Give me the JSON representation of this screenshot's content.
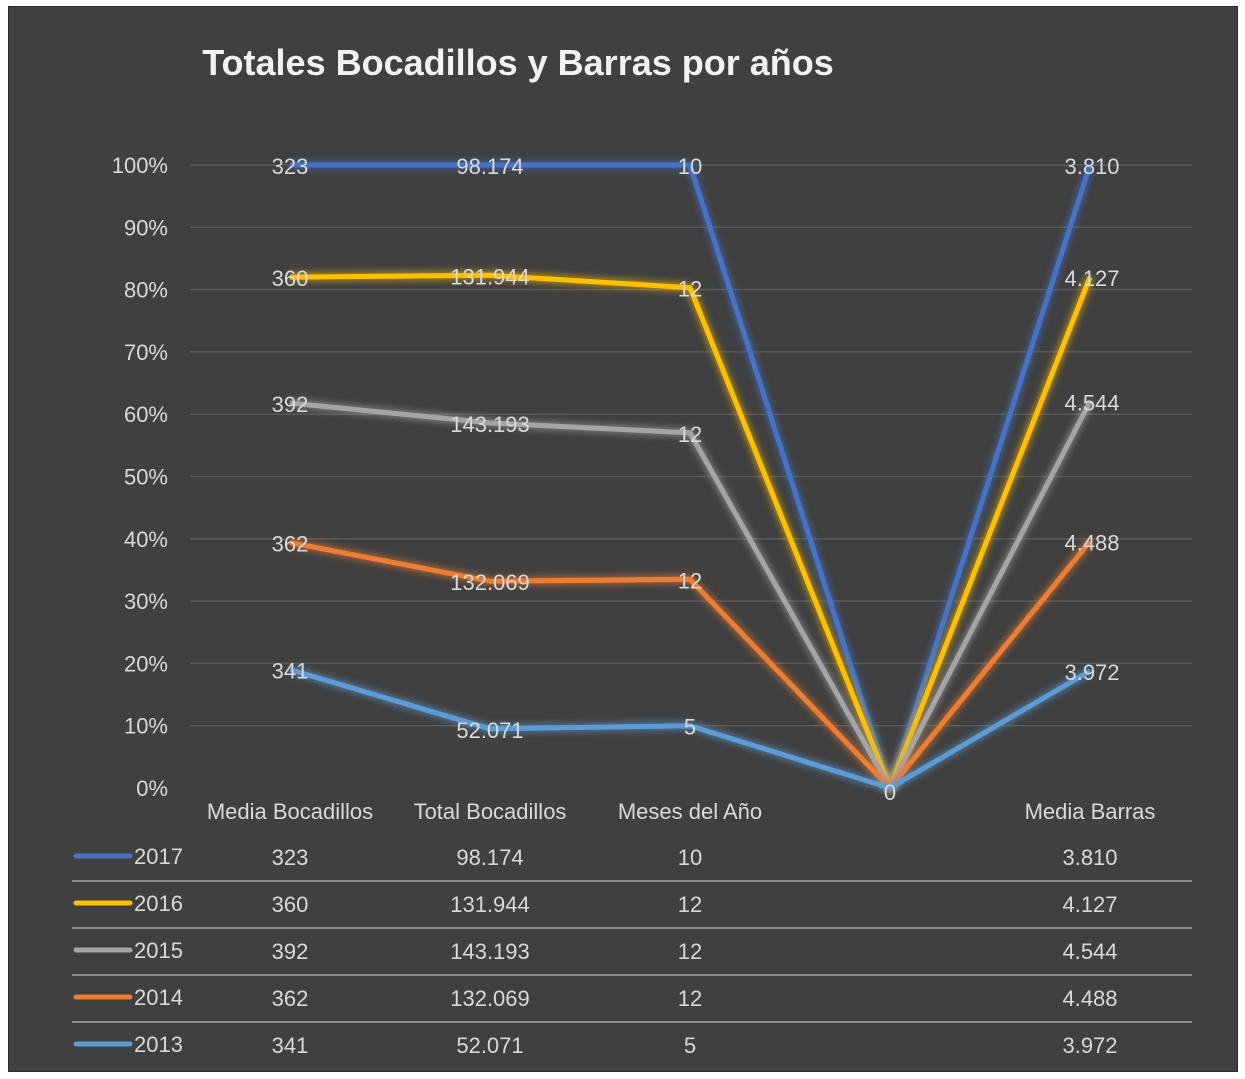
{
  "chart_data": {
    "type": "line",
    "title": "Totales Bocadillos y Barras por años",
    "categories": [
      "Media Bocadillos",
      "Total Bocadillos",
      "Meses del Año",
      "",
      "Media Barras"
    ],
    "y_axis": {
      "ticks": [
        "0%",
        "10%",
        "20%",
        "30%",
        "40%",
        "50%",
        "60%",
        "70%",
        "80%",
        "90%",
        "100%"
      ],
      "ylim": [
        0,
        100
      ],
      "grid": true
    },
    "series": [
      {
        "name": "2017",
        "color": "#4472C4",
        "percent": [
          100,
          100,
          100,
          0,
          100
        ],
        "labels": [
          "323",
          "98.174",
          "10",
          "",
          "3.810"
        ]
      },
      {
        "name": "2016",
        "color": "#FFC000",
        "percent": [
          82,
          82.3,
          80.3,
          0,
          82
        ],
        "labels": [
          "360",
          "131.944",
          "12",
          "",
          "4.127"
        ]
      },
      {
        "name": "2015",
        "color": "#A5A5A5",
        "percent": [
          61.8,
          58.6,
          57,
          0,
          62
        ],
        "labels": [
          "392",
          "143.193",
          "12",
          "",
          "4.544"
        ]
      },
      {
        "name": "2014",
        "color": "#ED7D31",
        "percent": [
          39.4,
          33.2,
          33.5,
          0,
          39.6
        ],
        "labels": [
          "362",
          "132.069",
          "12",
          "",
          "4.488"
        ]
      },
      {
        "name": "2013",
        "color": "#5B9BD5",
        "percent": [
          19,
          9.5,
          10,
          0,
          18.8
        ],
        "labels": [
          "341",
          "52.071",
          "5",
          "",
          "3.972"
        ]
      }
    ],
    "zero_point_label": "0",
    "legend": "data-table-below",
    "data_table": {
      "headers": [
        "Media Bocadillos",
        "Total Bocadillos",
        "Meses del Año",
        "",
        "Media Barras"
      ],
      "rows": [
        {
          "series": "2017",
          "color": "#4472C4",
          "cells": [
            "323",
            "98.174",
            "10",
            "",
            "3.810"
          ]
        },
        {
          "series": "2016",
          "color": "#FFC000",
          "cells": [
            "360",
            "131.944",
            "12",
            "",
            "4.127"
          ]
        },
        {
          "series": "2015",
          "color": "#A5A5A5",
          "cells": [
            "392",
            "143.193",
            "12",
            "",
            "4.544"
          ]
        },
        {
          "series": "2014",
          "color": "#ED7D31",
          "cells": [
            "362",
            "132.069",
            "12",
            "",
            "4.488"
          ]
        },
        {
          "series": "2013",
          "color": "#5B9BD5",
          "cells": [
            "341",
            "52.071",
            "5",
            "",
            "3.972"
          ]
        }
      ]
    }
  }
}
